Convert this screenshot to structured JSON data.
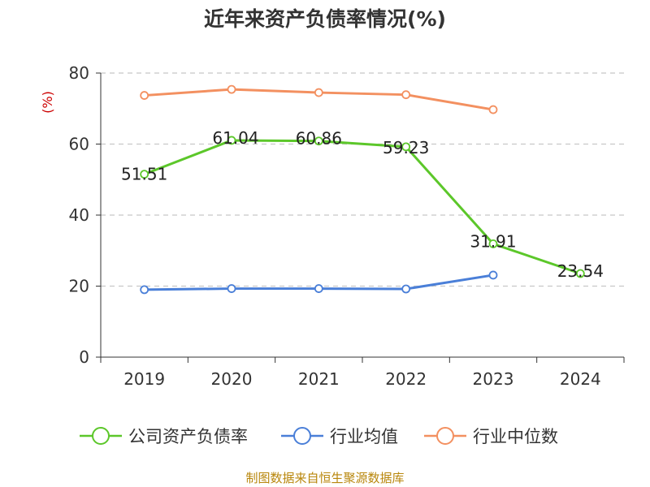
{
  "chart_data": {
    "type": "line",
    "title": "近年来资产负债率情况(%)",
    "ylabel": "(%)",
    "xlabel": "",
    "categories": [
      "2019",
      "2020",
      "2021",
      "2022",
      "2023",
      "2024"
    ],
    "ylim": [
      0,
      80
    ],
    "yticks": [
      0,
      20,
      40,
      60,
      80
    ],
    "grid": true,
    "legend_position": "bottom",
    "series": [
      {
        "name": "公司资产负债率",
        "color": "#5cc72a",
        "values": [
          51.51,
          61.04,
          60.86,
          59.23,
          31.91,
          23.54
        ],
        "labels": [
          "51.51",
          "61.04",
          "60.86",
          "59.23",
          "31.91",
          "23.54"
        ]
      },
      {
        "name": "行业均值",
        "color": "#4a7fd8",
        "values": [
          19.0,
          19.3,
          19.3,
          19.2,
          23.1,
          null
        ]
      },
      {
        "name": "行业中位数",
        "color": "#f39060",
        "values": [
          73.7,
          75.4,
          74.5,
          73.9,
          69.7,
          null
        ]
      }
    ]
  },
  "footer": {
    "source": "制图数据来自恒生聚源数据库"
  }
}
